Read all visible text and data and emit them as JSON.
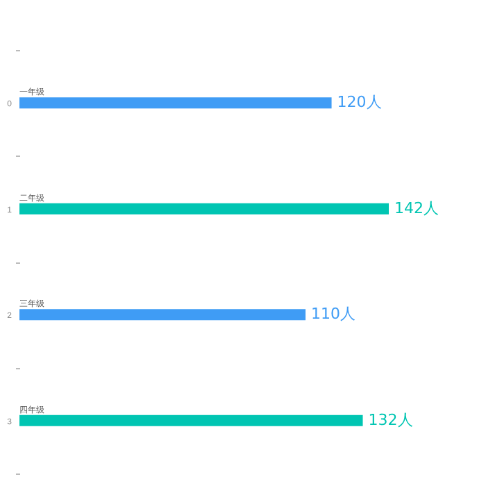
{
  "chart_data": {
    "type": "bar",
    "orientation": "horizontal",
    "categories": [
      "0",
      "1",
      "2",
      "3"
    ],
    "values": [
      120,
      142,
      110,
      132
    ],
    "colors": [
      "#3f9cf5",
      "#00c5b2",
      "#3f9cf5",
      "#00c5b2"
    ],
    "value_labels": [
      "120人",
      "142人",
      "110人",
      "132人"
    ],
    "annotations": [
      {
        "text": "一年级",
        "y": "0"
      },
      {
        "text": "二年级",
        "y": "1"
      },
      {
        "text": "三年级",
        "y": "2"
      },
      {
        "text": "四年级",
        "y": "3"
      }
    ],
    "tick_labels": "y"
  }
}
